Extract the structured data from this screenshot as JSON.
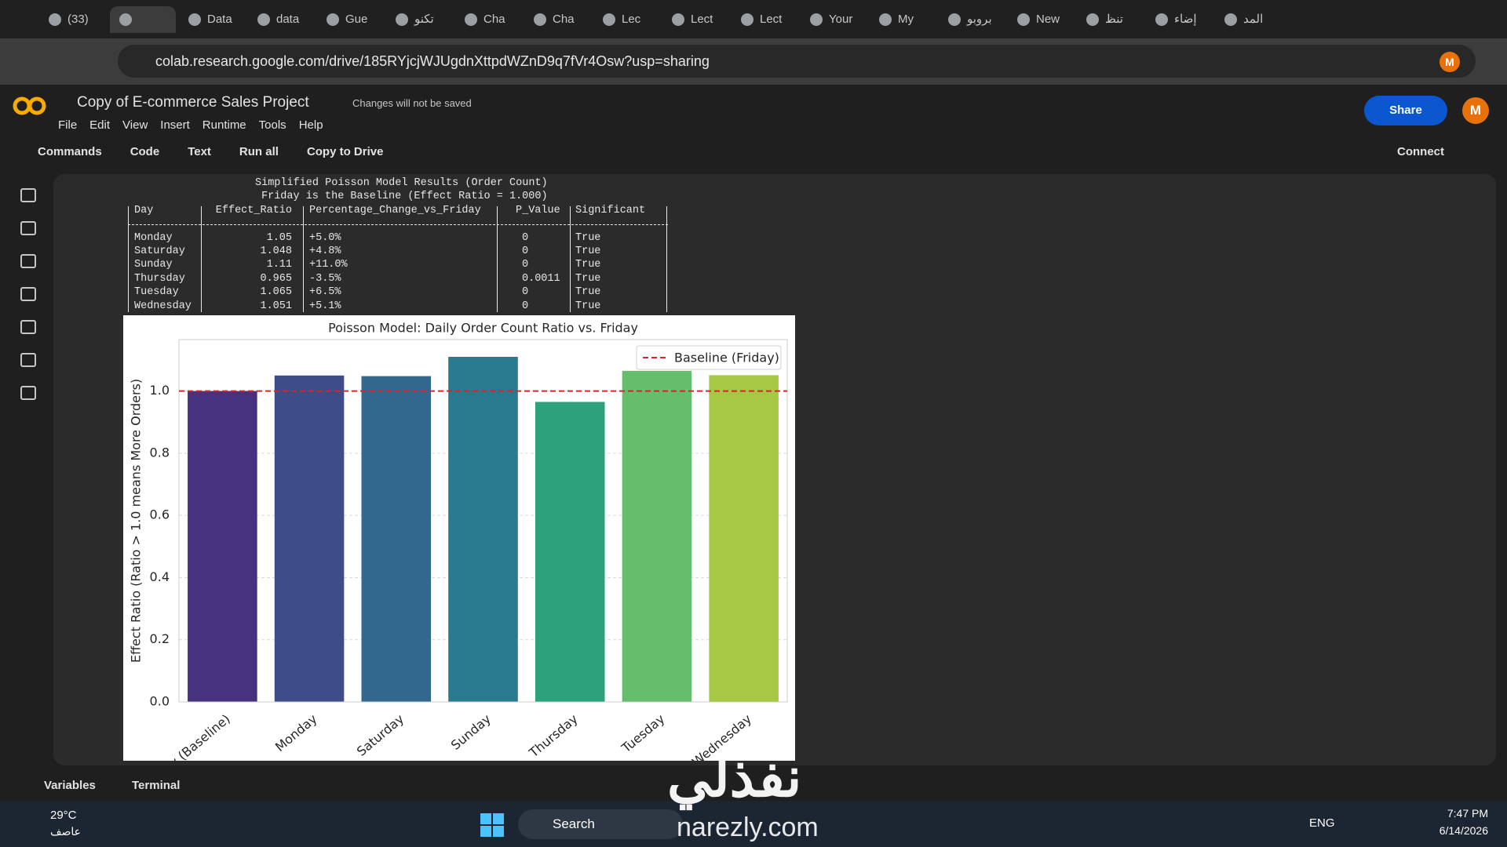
{
  "browser": {
    "tabs": [
      "(33)",
      "",
      "Data",
      "data",
      "Gue",
      "تكنو",
      "Cha",
      "Cha",
      "Lec",
      "Lect",
      "Lect",
      "Your",
      "My",
      "بروبو",
      "New",
      "تنظ",
      "إضاء",
      "المد"
    ],
    "url": "colab.research.google.com/drive/185RYjcjWJUgdnXttpdWZnD9q7fVr4Osw?usp=sharing",
    "avatar": "M"
  },
  "colab": {
    "title": "Copy of E-commerce Sales Project",
    "save_status": "Changes will not be saved",
    "menu": [
      "File",
      "Edit",
      "View",
      "Insert",
      "Runtime",
      "Tools",
      "Help"
    ],
    "share": "Share",
    "toolbar": [
      "Commands",
      "Code",
      "Text",
      "Run all",
      "Copy to Drive"
    ],
    "connect": "Connect"
  },
  "output": {
    "heading": [
      "Simplified Poisson Model Results (Order Count)",
      "Friday is the Baseline (Effect Ratio = 1.000)"
    ],
    "table": {
      "header": [
        "Day",
        "Effect_Ratio",
        "Percentage_Change_vs_Friday",
        "P_Value",
        "Significant"
      ],
      "rows": [
        [
          "Monday",
          "1.05",
          "+5.0%",
          "0",
          "True"
        ],
        [
          "Saturday",
          "1.048",
          "+4.8%",
          "0",
          "True"
        ],
        [
          "Sunday",
          "1.11",
          "+11.0%",
          "0",
          "True"
        ],
        [
          "Thursday",
          "0.965",
          "-3.5%",
          "0.0011",
          "True"
        ],
        [
          "Tuesday",
          "1.065",
          "+6.5%",
          "0",
          "True"
        ],
        [
          "Wednesday",
          "1.051",
          "+5.1%",
          "0",
          "True"
        ]
      ]
    }
  },
  "chart_data": {
    "type": "bar",
    "title": "Poisson Model: Daily Order Count Ratio vs. Friday",
    "y_label": "Effect Ratio (Ratio > 1.0 means More Orders)",
    "categories": [
      "Friday (Baseline)",
      "Monday",
      "Saturday",
      "Sunday",
      "Thursday",
      "Tuesday",
      "Wednesday"
    ],
    "values": [
      1.0,
      1.05,
      1.048,
      1.11,
      0.965,
      1.065,
      1.051
    ],
    "colors": [
      "#46327e",
      "#3e4c8a",
      "#32678e",
      "#297a8e",
      "#2da07c",
      "#65be6b",
      "#a7c845"
    ],
    "ylim": [
      0,
      1.1655
    ],
    "yticks": [
      {
        "value": 0,
        "label": "0.0"
      },
      {
        "value": 0.2,
        "label": "0.2"
      },
      {
        "value": 0.4,
        "label": "0.4"
      },
      {
        "value": 0.6,
        "label": "0.6"
      },
      {
        "value": 0.8,
        "label": "0.8"
      },
      {
        "value": 1,
        "label": "1.0"
      }
    ],
    "grid": true,
    "baseline": {
      "value": 1,
      "label": "Baseline (Friday)",
      "color": "#d62728"
    },
    "legend": "upper right"
  },
  "status_bar": [
    "Variables",
    "Terminal"
  ],
  "taskbar": {
    "temperature": "29°C",
    "weather": "عاصف",
    "search": "Search",
    "language": "ENG",
    "time": "7:47 PM",
    "date": "6/14/2026"
  },
  "watermark": {
    "brand": "نفذلي",
    "site": "narezly.com"
  }
}
